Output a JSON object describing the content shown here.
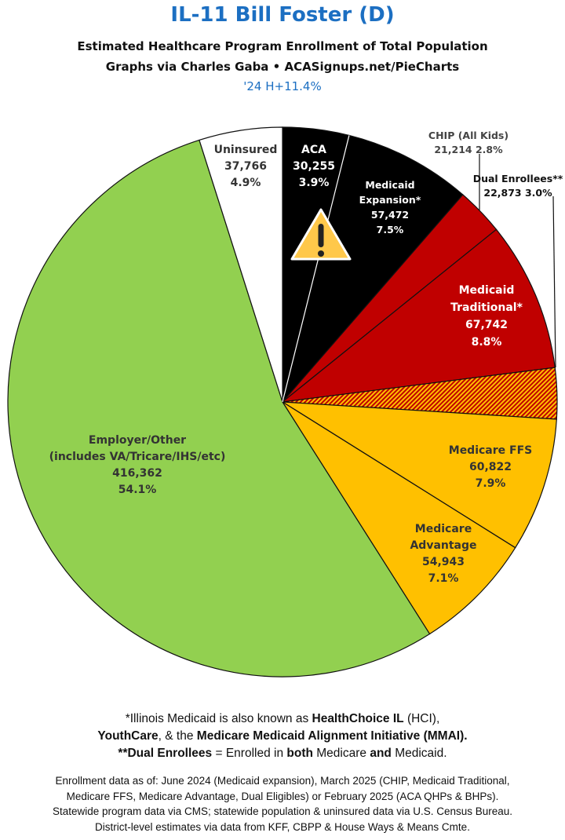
{
  "header": {
    "title": "IL-11 Bill Foster (D)",
    "subtitle": "Estimated Healthcare Program Enrollment of Total Population",
    "credit": "Graphs via Charles Gaba  •  ACASignups.net/PieCharts",
    "partisan_lean": "'24 H+11.4%"
  },
  "chart_data": {
    "type": "pie",
    "start": "12 o'clock, clockwise",
    "slices": [
      {
        "name": "ACA",
        "label": [
          "ACA",
          "30,255",
          "3.9%"
        ],
        "value": 30255,
        "percent": 3.9,
        "color": "#000000"
      },
      {
        "name": "Medicaid Expansion*",
        "label": [
          "Medicaid",
          "Expansion*",
          "57,472",
          "7.5%"
        ],
        "value": 57472,
        "percent": 7.5,
        "color": "#000000"
      },
      {
        "name": "CHIP (All Kids)",
        "label": [
          "CHIP (All Kids)",
          "21,214 2.8%"
        ],
        "value": 21214,
        "percent": 2.8,
        "color": "#c00000"
      },
      {
        "name": "Medicaid Traditional*",
        "label": [
          "Medicaid",
          "Traditional*",
          "67,742",
          "8.8%"
        ],
        "value": 67742,
        "percent": 8.8,
        "color": "#c00000"
      },
      {
        "name": "Dual Enrollees**",
        "label": [
          "Dual Enrollees**",
          "22,873 3.0%"
        ],
        "value": 22873,
        "percent": 3.0,
        "color": "hatched #c00000/#ffc000"
      },
      {
        "name": "Medicare FFS",
        "label": [
          "Medicare FFS",
          "60,822",
          "7.9%"
        ],
        "value": 60822,
        "percent": 7.9,
        "color": "#ffc000"
      },
      {
        "name": "Medicare Advantage",
        "label": [
          "Medicare",
          "Advantage",
          "54,943",
          "7.1%"
        ],
        "value": 54943,
        "percent": 7.1,
        "color": "#ffc000"
      },
      {
        "name": "Employer/Other",
        "label": [
          "Employer/Other",
          "(includes VA/Tricare/IHS/etc)",
          "416,362",
          "54.1%"
        ],
        "value": 416362,
        "percent": 54.1,
        "color": "#92d050"
      },
      {
        "name": "Uninsured",
        "label": [
          "Uninsured",
          "37,766",
          "4.9%"
        ],
        "value": 37766,
        "percent": 4.9,
        "color": "#ffffff"
      }
    ],
    "annotation_icon": "warning-icon"
  },
  "notes": {
    "line1": [
      "*Illinois Medicaid is also known as ",
      "HealthChoice IL",
      " (HCI),"
    ],
    "line2": [
      "YouthCare",
      ", & the ",
      "Medicare Medicaid Alignment Initiative (MMAI)."
    ],
    "line3": [
      "**Dual Enrollees",
      " = Enrolled in ",
      "both",
      " Medicare ",
      "and",
      " Medicaid."
    ],
    "sources": [
      "Enrollment data as of: June 2024 (Medicaid expansion), March 2025 (CHIP, Medicaid Traditional,",
      "Medicare FFS, Medicare Advantage, Dual Eligibles) or February 2025 (ACA QHPs & BHPs).",
      "Statewide program data via CMS; statewide population & uninsured data via U.S. Census Bureau.",
      "District-level estimates via data from KFF, CBPP & House Ways & Means Cmte."
    ]
  }
}
